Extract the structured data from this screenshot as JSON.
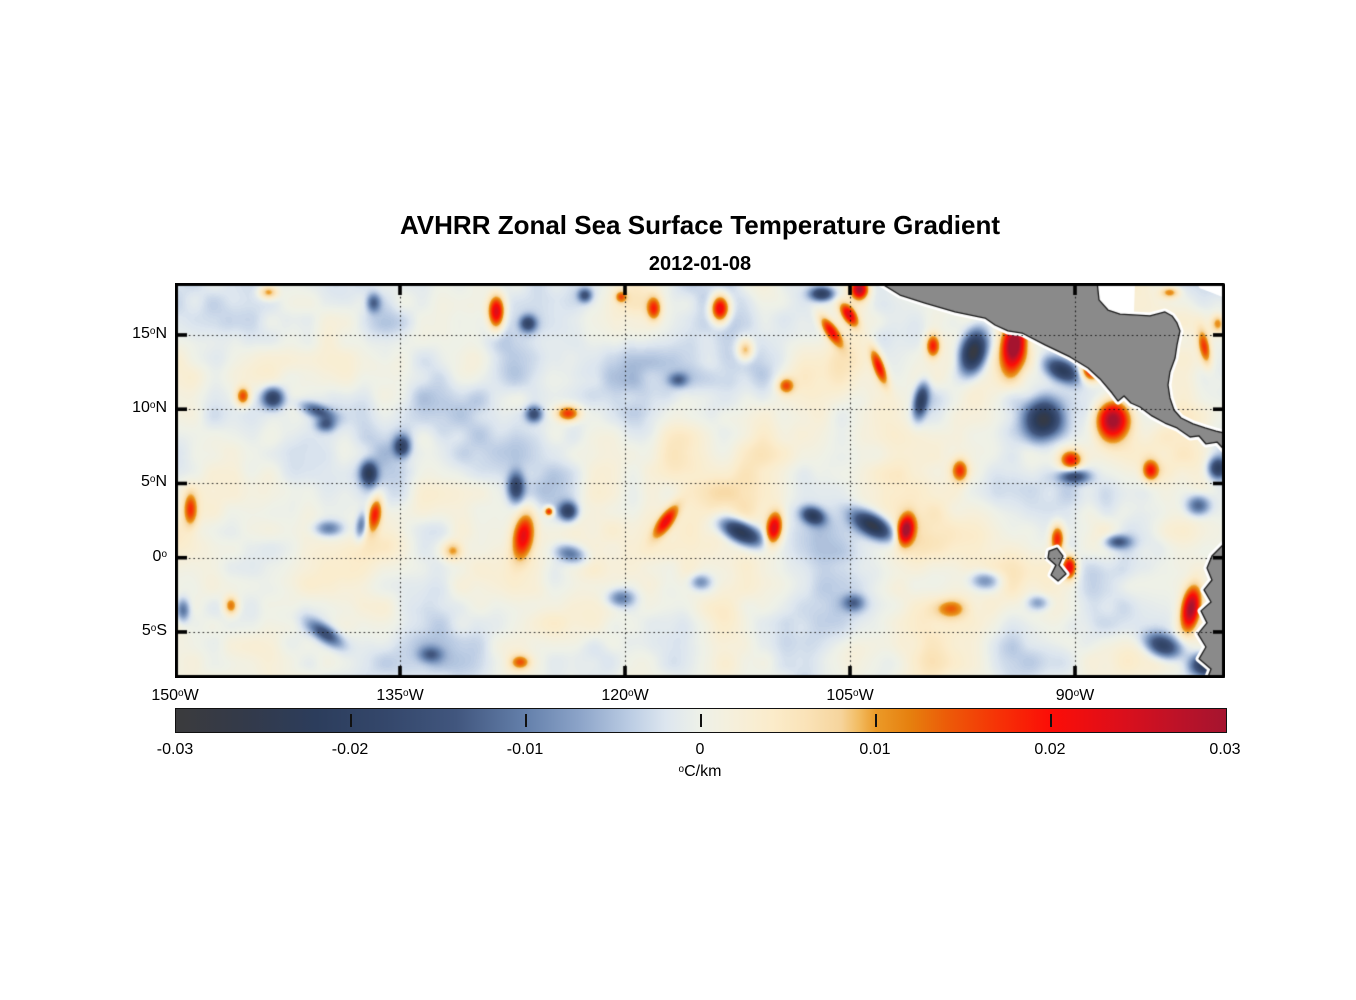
{
  "title": "AVHRR Zonal Sea Surface Temperature Gradient",
  "subtitle": "2012-01-08",
  "chart_data": {
    "type": "heatmap",
    "description": "Map of zonal SST gradient over the eastern tropical Pacific; diverging blue-white-red field with gray land masses (Mexico, Central America, South America, Galapagos).",
    "lon_range": [
      -150,
      -80
    ],
    "lat_range": [
      -8.1,
      18.5
    ],
    "axes": {
      "lat_ticks": [
        {
          "label": "15",
          "sup": "o",
          "suffix": "N",
          "value": 15
        },
        {
          "label": "10",
          "sup": "o",
          "suffix": "N",
          "value": 10
        },
        {
          "label": "5",
          "sup": "o",
          "suffix": "N",
          "value": 5
        },
        {
          "label": "0",
          "sup": "o",
          "suffix": "",
          "value": 0
        },
        {
          "label": "5",
          "sup": "o",
          "suffix": "S",
          "value": -5
        }
      ],
      "lon_ticks": [
        {
          "label": "150",
          "sup": "o",
          "suffix": "W",
          "value": -150
        },
        {
          "label": "135",
          "sup": "o",
          "suffix": "W",
          "value": -135
        },
        {
          "label": "120",
          "sup": "o",
          "suffix": "W",
          "value": -120
        },
        {
          "label": "105",
          "sup": "o",
          "suffix": "W",
          "value": -105
        },
        {
          "label": "90",
          "sup": "o",
          "suffix": "W",
          "value": -90
        }
      ]
    },
    "grid": {
      "lat_lines": [
        15,
        10,
        5,
        0,
        -5
      ],
      "lon_lines": [
        -135,
        -120,
        -105,
        -90
      ],
      "style": "dotted"
    },
    "colorbar": {
      "min": -0.03,
      "max": 0.03,
      "unit_sup": "o",
      "unit_text": "C/km",
      "ticks": [
        {
          "label": "-0.03",
          "value": -0.03
        },
        {
          "label": "-0.02",
          "value": -0.02
        },
        {
          "label": "-0.01",
          "value": -0.01
        },
        {
          "label": "0",
          "value": 0
        },
        {
          "label": "0.01",
          "value": 0.01
        },
        {
          "label": "0.02",
          "value": 0.02
        },
        {
          "label": "0.03",
          "value": 0.03
        }
      ],
      "tick_marks": [
        -0.02,
        -0.01,
        0,
        0.01,
        0.02
      ],
      "stops": [
        [
          -0.03,
          "#3b3b3d"
        ],
        [
          -0.026,
          "#333a4a"
        ],
        [
          -0.022,
          "#2c3d5c"
        ],
        [
          -0.018,
          "#34476b"
        ],
        [
          -0.014,
          "#41567e"
        ],
        [
          -0.01,
          "#6480ab"
        ],
        [
          -0.007,
          "#8ba3c8"
        ],
        [
          -0.004,
          "#bccde4"
        ],
        [
          -0.002,
          "#dde6ef"
        ],
        [
          0,
          "#eef1e8"
        ],
        [
          0.002,
          "#f6efda"
        ],
        [
          0.004,
          "#fbeccb"
        ],
        [
          0.006,
          "#fae3b8"
        ],
        [
          0.008,
          "#f6d49c"
        ],
        [
          0.009,
          "#f2bc62"
        ],
        [
          0.01,
          "#eb9a28"
        ],
        [
          0.012,
          "#e67f0e"
        ],
        [
          0.014,
          "#ec5c08"
        ],
        [
          0.017,
          "#f63206"
        ],
        [
          0.02,
          "#fc0d07"
        ],
        [
          0.024,
          "#dc0f1b"
        ],
        [
          0.027,
          "#bf1227"
        ],
        [
          0.03,
          "#a5142f"
        ]
      ]
    },
    "colors": {
      "land": "#8a8a8a",
      "coast_outline": "#1a1a1a",
      "coast_fringe": "#ffffff",
      "frame": "#000000"
    },
    "land_polygons": [
      {
        "name": "central-america-mainland",
        "pts": [
          -103.13,
          18.6,
          -88.53,
          18.6,
          -88.4,
          17.36,
          -87.8,
          16.68,
          -87.0,
          16.41,
          -86.13,
          16.35,
          -85.0,
          16.28,
          -84.0,
          16.55,
          -83.53,
          16.28,
          -83.2,
          15.81,
          -83.0,
          15.27,
          -83.2,
          14.33,
          -83.33,
          13.45,
          -83.67,
          12.51,
          -83.8,
          11.63,
          -83.67,
          10.76,
          -83.4,
          9.95,
          -82.93,
          9.41,
          -82.13,
          9.01,
          -81.33,
          8.74,
          -80.6,
          8.53,
          -79.8,
          8.33,
          -79.8,
          7.0,
          -80.53,
          7.79,
          -81.27,
          7.66,
          -81.73,
          8.2,
          -82.33,
          8.13,
          -83.2,
          8.74,
          -84.0,
          9.07,
          -84.87,
          9.55,
          -85.67,
          10.15,
          -86.27,
          10.42,
          -86.73,
          10.89,
          -87.13,
          10.55,
          -87.53,
          11.09,
          -88.33,
          12.04,
          -89.13,
          12.78,
          -90.33,
          13.52,
          -92.0,
          14.33,
          -93.53,
          15.13,
          -94.47,
          15.27,
          -95.33,
          15.67,
          -96.0,
          16.14,
          -98.0,
          16.55,
          -100.0,
          17.15,
          -101.67,
          17.69
        ]
      },
      {
        "name": "south-america-coast",
        "pts": [
          -79.8,
          1.2,
          -80.87,
          0.12,
          -81.2,
          -0.69,
          -80.87,
          -1.5,
          -81.4,
          -2.17,
          -80.93,
          -2.98,
          -81.6,
          -3.58,
          -81.2,
          -4.39,
          -81.8,
          -5.13,
          -81.27,
          -6.01,
          -81.73,
          -6.81,
          -80.93,
          -7.49,
          -81.2,
          -8.2,
          -79.8,
          -8.2
        ]
      },
      {
        "name": "galapagos-island",
        "pts": [
          -91.73,
          0.45,
          -91.2,
          0.65,
          -90.8,
          0.11,
          -91.07,
          -0.5,
          -90.6,
          -1.09,
          -91.13,
          -1.57,
          -91.6,
          -1.16,
          -91.27,
          -0.5,
          -91.8,
          -0.03
        ]
      }
    ],
    "no_data_white_areas": [
      {
        "name": "gulf-of-honduras",
        "pts": [
          -88.67,
          18.6,
          -86.0,
          18.6,
          -86.07,
          16.45,
          -87.0,
          16.55,
          -87.93,
          16.9,
          -88.47,
          17.7
        ]
      },
      {
        "name": "caribbean-corner",
        "pts": [
          -82.0,
          18.6,
          -79.8,
          18.6,
          -79.8,
          17.4,
          -80.87,
          17.85,
          -81.67,
          18.15
        ]
      }
    ],
    "features": [
      [
        -128.6,
        16.55,
        0.026,
        0.7,
        1.4,
        0
      ],
      [
        -126.5,
        15.8,
        -0.016,
        0.7,
        0.7,
        0
      ],
      [
        -118.1,
        16.8,
        0.016,
        0.6,
        1.0,
        0
      ],
      [
        -113.7,
        16.8,
        0.026,
        0.8,
        1.2,
        0
      ],
      [
        -106.9,
        17.8,
        -0.02,
        1.0,
        0.6,
        0
      ],
      [
        -104.4,
        18.1,
        0.028,
        0.7,
        0.8,
        0
      ],
      [
        -106.3,
        15.3,
        0.02,
        0.55,
        1.5,
        -35
      ],
      [
        -105.1,
        16.4,
        0.022,
        0.55,
        1.1,
        -35
      ],
      [
        -109.3,
        11.6,
        0.014,
        0.7,
        0.7,
        0
      ],
      [
        -103.1,
        12.9,
        0.02,
        0.5,
        1.6,
        -20
      ],
      [
        -100.3,
        10.6,
        -0.02,
        0.6,
        1.5,
        10
      ],
      [
        -96.8,
        13.9,
        -0.031,
        1.1,
        1.9,
        15
      ],
      [
        -94.1,
        14.3,
        0.032,
        1.0,
        2.2,
        8
      ],
      [
        -99.5,
        14.3,
        0.018,
        0.6,
        1.0,
        0
      ],
      [
        -90.8,
        12.6,
        -0.022,
        1.6,
        0.9,
        25
      ],
      [
        -92.1,
        9.3,
        -0.027,
        1.6,
        1.7,
        0
      ],
      [
        -89.0,
        12.6,
        0.02,
        0.9,
        0.9,
        0
      ],
      [
        -87.5,
        9.3,
        0.032,
        1.4,
        1.7,
        0
      ],
      [
        -90.3,
        6.6,
        0.018,
        0.9,
        0.8,
        0
      ],
      [
        -90.1,
        5.5,
        -0.016,
        1.2,
        0.6,
        0
      ],
      [
        -97.7,
        5.9,
        0.016,
        0.7,
        1.0,
        0
      ],
      [
        -85.0,
        5.9,
        0.018,
        0.7,
        0.9,
        0
      ],
      [
        -81.4,
        14.2,
        0.016,
        0.5,
        1.5,
        -10
      ],
      [
        -80.5,
        15.8,
        0.012,
        0.6,
        0.8,
        0
      ],
      [
        -83.7,
        17.9,
        0.012,
        0.8,
        0.5,
        0
      ],
      [
        -81.8,
        3.55,
        -0.014,
        1.0,
        0.9,
        0
      ],
      [
        -80.5,
        6.05,
        -0.02,
        0.8,
        0.9,
        0
      ],
      [
        -87.2,
        1.1,
        -0.014,
        1.1,
        0.6,
        0
      ],
      [
        -91.2,
        1.3,
        0.02,
        0.6,
        1.2,
        0
      ],
      [
        -90.4,
        -0.6,
        0.022,
        0.6,
        1.0,
        0
      ],
      [
        -82.3,
        -3.4,
        0.031,
        0.8,
        1.9,
        10
      ],
      [
        -84.2,
        -5.9,
        -0.021,
        1.6,
        1.0,
        20
      ],
      [
        -81.3,
        -7.2,
        -0.026,
        1.4,
        1.0,
        0
      ],
      [
        -127.3,
        4.8,
        -0.018,
        0.7,
        1.3,
        0
      ],
      [
        -126.8,
        1.5,
        0.022,
        0.9,
        2.0,
        10
      ],
      [
        -125.1,
        3.15,
        0.02,
        0.4,
        0.4,
        0
      ],
      [
        -123.8,
        3.15,
        -0.02,
        0.8,
        0.8,
        0
      ],
      [
        -123.7,
        0.3,
        -0.012,
        1.4,
        0.8,
        15
      ],
      [
        -117.3,
        2.5,
        0.02,
        0.6,
        1.6,
        35
      ],
      [
        -112.3,
        1.75,
        -0.028,
        1.9,
        0.9,
        25
      ],
      [
        -110.1,
        2.0,
        0.024,
        0.7,
        1.4,
        10
      ],
      [
        -107.5,
        2.85,
        -0.02,
        1.0,
        0.7,
        20
      ],
      [
        -103.5,
        2.2,
        -0.026,
        1.9,
        0.9,
        30
      ],
      [
        -101.3,
        1.9,
        0.028,
        0.7,
        1.3,
        10
      ],
      [
        -143.5,
        10.8,
        -0.02,
        0.9,
        0.9,
        0
      ],
      [
        -140.5,
        9.9,
        -0.013,
        1.5,
        0.6,
        20
      ],
      [
        -145.5,
        10.9,
        0.016,
        0.6,
        0.8,
        0
      ],
      [
        -140.0,
        9.0,
        -0.012,
        0.8,
        0.6,
        0
      ],
      [
        -134.9,
        7.5,
        -0.018,
        0.7,
        0.9,
        0
      ],
      [
        -137.1,
        5.7,
        -0.02,
        0.7,
        1.0,
        0
      ],
      [
        -123.8,
        9.75,
        0.018,
        1.0,
        0.7,
        0
      ],
      [
        -126.1,
        9.7,
        -0.016,
        0.7,
        0.7,
        0
      ],
      [
        -149.0,
        3.3,
        0.015,
        0.6,
        1.4,
        0
      ],
      [
        -136.7,
        3.0,
        0.018,
        0.6,
        1.5,
        10
      ],
      [
        -137.6,
        2.2,
        -0.012,
        0.5,
        1.2,
        10
      ],
      [
        -139.8,
        2.0,
        -0.011,
        1.2,
        0.7,
        0
      ],
      [
        -140.0,
        -5.1,
        -0.016,
        1.6,
        0.7,
        35
      ],
      [
        -146.3,
        -3.2,
        0.013,
        0.6,
        0.8,
        0
      ],
      [
        -120.3,
        -2.7,
        -0.011,
        1.2,
        0.8,
        0
      ],
      [
        -115.0,
        -1.6,
        -0.009,
        0.9,
        0.7,
        0
      ],
      [
        -98.3,
        -3.4,
        0.01,
        1.3,
        0.8,
        0
      ],
      [
        -104.8,
        -3.0,
        -0.01,
        0.9,
        0.7,
        0
      ],
      [
        -96.0,
        -1.5,
        -0.01,
        1.3,
        0.8,
        0
      ],
      [
        -92.5,
        -3.0,
        -0.009,
        1.0,
        0.7,
        0
      ],
      [
        -143.8,
        17.9,
        0.012,
        0.8,
        0.6,
        0
      ],
      [
        -136.8,
        17.2,
        -0.012,
        0.6,
        0.8,
        0
      ],
      [
        -122.7,
        17.7,
        -0.014,
        0.6,
        0.6,
        0
      ],
      [
        -120.3,
        17.6,
        0.012,
        0.5,
        0.5,
        0
      ],
      [
        -149.5,
        -3.5,
        -0.012,
        0.6,
        1.0,
        0
      ],
      [
        -131.5,
        0.5,
        0.01,
        0.8,
        0.8,
        0
      ],
      [
        -133.0,
        -6.5,
        -0.01,
        1.0,
        0.7,
        0
      ],
      [
        -127.0,
        -7.0,
        0.012,
        0.8,
        0.6,
        0
      ],
      [
        -112.0,
        14.0,
        0.012,
        0.7,
        0.9,
        0
      ],
      [
        -116.5,
        12.0,
        -0.01,
        0.8,
        0.6,
        0
      ]
    ],
    "base_noise": {
      "amplitude": 0.0078,
      "bias": 0.0006
    }
  }
}
